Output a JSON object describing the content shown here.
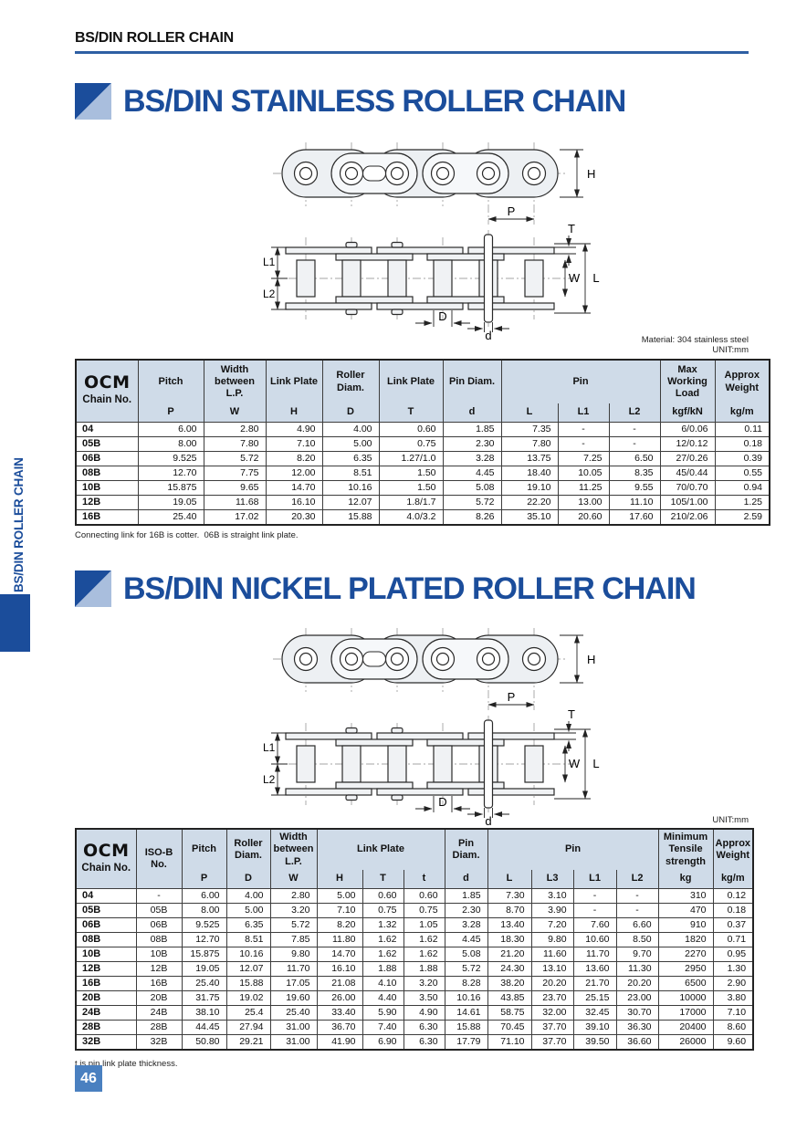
{
  "page": {
    "running_header": "BS/DIN ROLLER CHAIN",
    "sidebar_label": "BS/DIN ROLLER CHAIN",
    "page_number": "46"
  },
  "colors": {
    "brand_blue": "#1b4d9b",
    "icon_light_blue": "#a9bedd",
    "table_header_bg": "#cfdbe8",
    "page_badge_blue": "#4a80c0",
    "header_rule_blue": "#2e5fa3"
  },
  "diagram_labels": {
    "H": "H",
    "P": "P",
    "T": "T",
    "L1": "L1",
    "L2": "L2",
    "W": "W",
    "L": "L",
    "D": "D",
    "d": "d"
  },
  "section1": {
    "title": "BS/DIN STAINLESS ROLLER CHAIN",
    "material_note": "Material: 304 stainless steel",
    "unit_note": "UNIT:mm",
    "footnote": "Connecting link for 16B is cotter.  06B is straight link plate.",
    "table": {
      "brand": "OCM",
      "brand_sub": "Chain No.",
      "col_groups": [
        {
          "label": "Pitch",
          "sub": [
            "P"
          ]
        },
        {
          "label": "Width between L.P.",
          "sub": [
            "W"
          ]
        },
        {
          "label": "Link Plate",
          "sub": [
            "H"
          ]
        },
        {
          "label": "Roller Diam.",
          "sub": [
            "D"
          ]
        },
        {
          "label": "Link Plate",
          "sub": [
            "T"
          ]
        },
        {
          "label": "Pin Diam.",
          "sub": [
            "d"
          ]
        },
        {
          "label": "Pin",
          "sub": [
            "L",
            "L1",
            "L2"
          ]
        },
        {
          "label": "Max Working Load",
          "sub": [
            "kgf/kN"
          ]
        },
        {
          "label": "Approx Weight",
          "sub": [
            "kg/m"
          ]
        }
      ],
      "center_cols": [],
      "rows": [
        {
          "no": "04",
          "values": [
            "6.00",
            "2.80",
            "4.90",
            "4.00",
            "0.60",
            "1.85",
            "7.35",
            "-",
            "-",
            "6/0.06",
            "0.11"
          ]
        },
        {
          "no": "05B",
          "values": [
            "8.00",
            "7.80",
            "7.10",
            "5.00",
            "0.75",
            "2.30",
            "7.80",
            "-",
            "-",
            "12/0.12",
            "0.18"
          ]
        },
        {
          "no": "06B",
          "values": [
            "9.525",
            "5.72",
            "8.20",
            "6.35",
            "1.27/1.0",
            "3.28",
            "13.75",
            "7.25",
            "6.50",
            "27/0.26",
            "0.39"
          ]
        },
        {
          "no": "08B",
          "values": [
            "12.70",
            "7.75",
            "12.00",
            "8.51",
            "1.50",
            "4.45",
            "18.40",
            "10.05",
            "8.35",
            "45/0.44",
            "0.55"
          ]
        },
        {
          "no": "10B",
          "values": [
            "15.875",
            "9.65",
            "14.70",
            "10.16",
            "1.50",
            "5.08",
            "19.10",
            "11.25",
            "9.55",
            "70/0.70",
            "0.94"
          ]
        },
        {
          "no": "12B",
          "values": [
            "19.05",
            "11.68",
            "16.10",
            "12.07",
            "1.8/1.7",
            "5.72",
            "22.20",
            "13.00",
            "11.10",
            "105/1.00",
            "1.25"
          ]
        },
        {
          "no": "16B",
          "values": [
            "25.40",
            "17.02",
            "20.30",
            "15.88",
            "4.0/3.2",
            "8.26",
            "35.10",
            "20.60",
            "17.60",
            "210/2.06",
            "2.59"
          ]
        }
      ]
    }
  },
  "section2": {
    "title": "BS/DIN NICKEL PLATED ROLLER CHAIN",
    "unit_note": "UNIT:mm",
    "footnote": "t is pin link plate thickness.",
    "table": {
      "brand": "OCM",
      "brand_sub": "Chain No.",
      "col_groups": [
        {
          "label": "ISO-B No.",
          "sub": []
        },
        {
          "label": "Pitch",
          "sub": [
            "P"
          ]
        },
        {
          "label": "Roller Diam.",
          "sub": [
            "D"
          ]
        },
        {
          "label": "Width between L.P.",
          "sub": [
            "W"
          ]
        },
        {
          "label": "Link Plate",
          "sub": [
            "H",
            "T",
            "t"
          ]
        },
        {
          "label": "Pin Diam.",
          "sub": [
            "d"
          ]
        },
        {
          "label": "Pin",
          "sub": [
            "L",
            "L3",
            "L1",
            "L2"
          ]
        },
        {
          "label": "Minimum Tensile strength",
          "sub": [
            "kg"
          ]
        },
        {
          "label": "Approx Weight",
          "sub": [
            "kg/m"
          ]
        }
      ],
      "center_cols": [
        0
      ],
      "rows": [
        {
          "no": "04",
          "values": [
            "-",
            "6.00",
            "4.00",
            "2.80",
            "5.00",
            "0.60",
            "0.60",
            "1.85",
            "7.30",
            "3.10",
            "-",
            "-",
            "310",
            "0.12"
          ]
        },
        {
          "no": "05B",
          "values": [
            "05B",
            "8.00",
            "5.00",
            "3.20",
            "7.10",
            "0.75",
            "0.75",
            "2.30",
            "8.70",
            "3.90",
            "-",
            "-",
            "470",
            "0.18"
          ]
        },
        {
          "no": "06B",
          "values": [
            "06B",
            "9.525",
            "6.35",
            "5.72",
            "8.20",
            "1.32",
            "1.05",
            "3.28",
            "13.40",
            "7.20",
            "7.60",
            "6.60",
            "910",
            "0.37"
          ]
        },
        {
          "no": "08B",
          "values": [
            "08B",
            "12.70",
            "8.51",
            "7.85",
            "11.80",
            "1.62",
            "1.62",
            "4.45",
            "18.30",
            "9.80",
            "10.60",
            "8.50",
            "1820",
            "0.71"
          ]
        },
        {
          "no": "10B",
          "values": [
            "10B",
            "15.875",
            "10.16",
            "9.80",
            "14.70",
            "1.62",
            "1.62",
            "5.08",
            "21.20",
            "11.60",
            "11.70",
            "9.70",
            "2270",
            "0.95"
          ]
        },
        {
          "no": "12B",
          "values": [
            "12B",
            "19.05",
            "12.07",
            "11.70",
            "16.10",
            "1.88",
            "1.88",
            "5.72",
            "24.30",
            "13.10",
            "13.60",
            "11.30",
            "2950",
            "1.30"
          ]
        },
        {
          "no": "16B",
          "values": [
            "16B",
            "25.40",
            "15.88",
            "17.05",
            "21.08",
            "4.10",
            "3.20",
            "8.28",
            "38.20",
            "20.20",
            "21.70",
            "20.20",
            "6500",
            "2.90"
          ]
        },
        {
          "no": "20B",
          "values": [
            "20B",
            "31.75",
            "19.02",
            "19.60",
            "26.00",
            "4.40",
            "3.50",
            "10.16",
            "43.85",
            "23.70",
            "25.15",
            "23.00",
            "10000",
            "3.80"
          ]
        },
        {
          "no": "24B",
          "values": [
            "24B",
            "38.10",
            "25.4",
            "25.40",
            "33.40",
            "5.90",
            "4.90",
            "14.61",
            "58.75",
            "32.00",
            "32.45",
            "30.70",
            "17000",
            "7.10"
          ]
        },
        {
          "no": "28B",
          "values": [
            "28B",
            "44.45",
            "27.94",
            "31.00",
            "36.70",
            "7.40",
            "6.30",
            "15.88",
            "70.45",
            "37.70",
            "39.10",
            "36.30",
            "20400",
            "8.60"
          ]
        },
        {
          "no": "32B",
          "values": [
            "32B",
            "50.80",
            "29.21",
            "31.00",
            "41.90",
            "6.90",
            "6.30",
            "17.79",
            "71.10",
            "37.70",
            "39.50",
            "36.60",
            "26000",
            "9.60"
          ]
        }
      ]
    }
  }
}
